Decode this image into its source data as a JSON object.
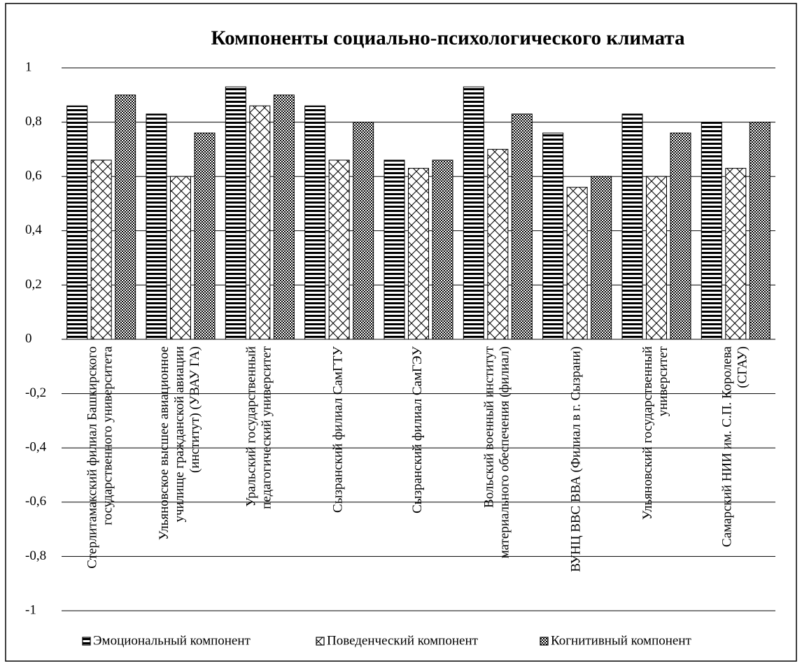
{
  "chart_data": {
    "type": "bar",
    "title": "Компоненты социально-психологического климата",
    "categories": [
      "Стерлитамакский филиал Башкирского государственного университета",
      "Ульяновское высшее авиационное училище гражданской авиации (институт) (УВАУ ГА)",
      "Уральский государственный педагогический университет",
      "Сызранский филиал СамГТУ",
      "Сызранский филиал СамГЭУ",
      "Вольский военный институт материального обеспечения (филиал)",
      "ВУНЦ ВВС ВВА (Филиал в г. Сызрани)",
      "Ульяновский государственный университет",
      "Самарский НИИ им. С.П. Королева (СГАУ)"
    ],
    "series": [
      {
        "name": "Эмоциональный компонент",
        "color": "#000000",
        "pattern": "horizontal",
        "values": [
          0.86,
          0.83,
          0.93,
          0.86,
          0.66,
          0.93,
          0.76,
          0.83,
          0.8
        ]
      },
      {
        "name": "Поведенческий компонент",
        "color": "#000000",
        "pattern": "diagonal",
        "values": [
          0.66,
          0.6,
          0.86,
          0.66,
          0.63,
          0.7,
          0.56,
          0.6,
          0.63
        ]
      },
      {
        "name": "Когнитивный компонент",
        "color": "#000000",
        "pattern": "checker",
        "values": [
          0.9,
          0.76,
          0.9,
          0.8,
          0.66,
          0.83,
          0.6,
          0.76,
          0.8
        ]
      }
    ],
    "ylim": [
      -1,
      1
    ],
    "yticks": [
      -1,
      {
        "value": -0.8,
        "label": "-0,8"
      },
      {
        "value": -0.6,
        "label": "-0,6"
      },
      {
        "value": -0.4,
        "label": "-0,4"
      },
      {
        "value": -0.2,
        "label": "-0,2"
      },
      0,
      {
        "value": 0.2,
        "label": "0,2"
      },
      {
        "value": 0.4,
        "label": "0,4"
      },
      {
        "value": 0.6,
        "label": "0,6"
      },
      {
        "value": 0.8,
        "label": "0,8"
      },
      1
    ],
    "grid": true,
    "legend": "bottom"
  }
}
